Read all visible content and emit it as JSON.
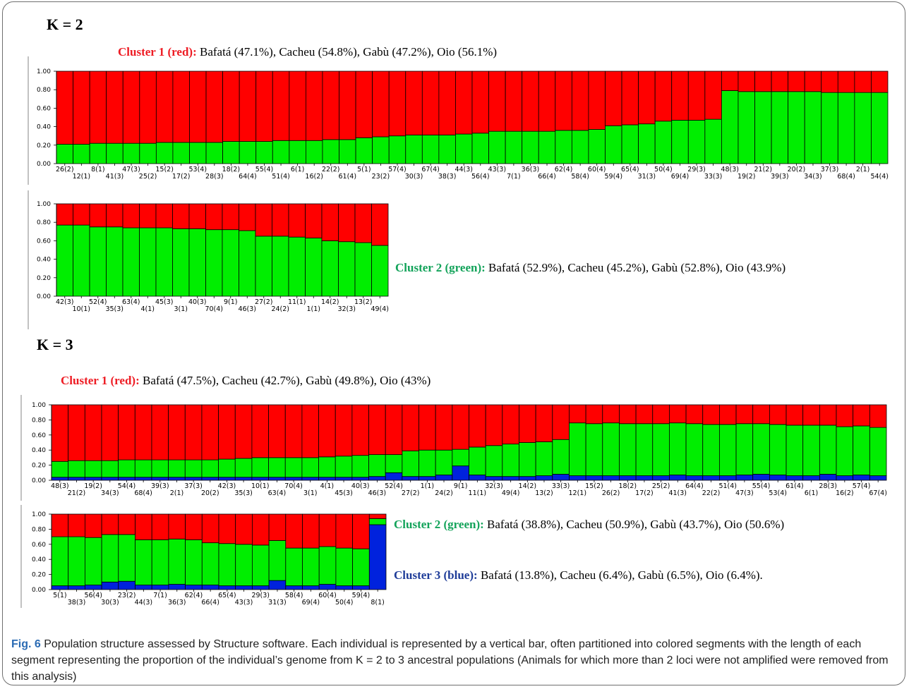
{
  "figure": {
    "k2_title": "K = 2",
    "k3_title": "K = 3",
    "k2_cluster1": {
      "label": "Cluster 1 (red):",
      "text": " Bafatá (47.1%), Cacheu (54.8%), Gabù (47.2%), Oio (56.1%)"
    },
    "k2_cluster2": {
      "label": "Cluster 2 (green):",
      "text": " Bafatá (52.9%), Cacheu (45.2%), Gabù (52.8%), Oio (43.9%)"
    },
    "k3_cluster1": {
      "label": "Cluster 1 (red):",
      "text": " Bafatá (47.5%), Cacheu (42.7%), Gabù (49.8%), Oio (43%)"
    },
    "k3_cluster2": {
      "label": "Cluster 2 (green):",
      "text": " Bafatá (38.8%), Cacheu (50.9%), Gabù (43.7%), Oio (50.6%)"
    },
    "k3_cluster3": {
      "label": "Cluster 3 (blue):",
      "text": " Bafatá (13.8%), Cacheu (6.4%), Gabù (6.5%), Oio (6.4%)."
    },
    "caption_label": "Fig. 6",
    "caption_text": " Population structure assessed by Structure software. Each individual is represented by a vertical bar, often partitioned into colored segments with the length of each segment representing the proportion of the individual’s genome from K = 2 to 3 ancestral populations (Animals for which more than 2 loci were not amplified were removed from this analysis)"
  },
  "colors": {
    "red": "#ff0000",
    "green": "#00ee00",
    "blue": "#0022dd",
    "axis": "#000000"
  },
  "chart_data": [
    {
      "type": "bar",
      "stacked": true,
      "panel": "K2-row1",
      "ylim": [
        0,
        1
      ],
      "yticks": [
        "0.00",
        "0.20",
        "0.40",
        "0.60",
        "0.80",
        "1.00"
      ],
      "categories": [
        "26(2)",
        "12(1)",
        "8(1)",
        "41(3)",
        "47(3)",
        "25(2)",
        "15(2)",
        "17(2)",
        "53(4)",
        "28(3)",
        "18(2)",
        "64(4)",
        "55(4)",
        "51(4)",
        "6(1)",
        "16(2)",
        "22(2)",
        "61(4)",
        "5(1)",
        "23(2)",
        "57(4)",
        "30(3)",
        "67(4)",
        "38(3)",
        "44(3)",
        "56(4)",
        "43(3)",
        "7(1)",
        "36(3)",
        "66(4)",
        "62(4)",
        "58(4)",
        "60(4)",
        "59(4)",
        "65(4)",
        "31(3)",
        "50(4)",
        "69(4)",
        "29(3)",
        "33(3)",
        "48(3)",
        "19(2)",
        "21(2)",
        "39(3)",
        "20(2)",
        "34(3)",
        "37(3)",
        "68(4)",
        "2(1)",
        "54(4)"
      ],
      "series": [
        {
          "name": "Cluster 2 (green)",
          "values": [
            0.21,
            0.21,
            0.22,
            0.22,
            0.22,
            0.22,
            0.23,
            0.23,
            0.23,
            0.23,
            0.24,
            0.24,
            0.24,
            0.25,
            0.25,
            0.25,
            0.26,
            0.26,
            0.28,
            0.29,
            0.3,
            0.31,
            0.31,
            0.31,
            0.32,
            0.33,
            0.35,
            0.35,
            0.35,
            0.35,
            0.36,
            0.36,
            0.37,
            0.41,
            0.42,
            0.43,
            0.46,
            0.47,
            0.47,
            0.48,
            0.79,
            0.78,
            0.78,
            0.78,
            0.78,
            0.78,
            0.77,
            0.77,
            0.77,
            0.77
          ]
        },
        {
          "name": "Cluster 1 (red)",
          "values": [
            0.79,
            0.79,
            0.78,
            0.78,
            0.78,
            0.78,
            0.77,
            0.77,
            0.77,
            0.77,
            0.76,
            0.76,
            0.76,
            0.75,
            0.75,
            0.75,
            0.74,
            0.74,
            0.72,
            0.71,
            0.7,
            0.69,
            0.69,
            0.69,
            0.68,
            0.67,
            0.65,
            0.65,
            0.65,
            0.65,
            0.64,
            0.64,
            0.63,
            0.59,
            0.58,
            0.57,
            0.54,
            0.53,
            0.53,
            0.52,
            0.21,
            0.22,
            0.22,
            0.22,
            0.22,
            0.22,
            0.23,
            0.23,
            0.23,
            0.23
          ]
        }
      ]
    },
    {
      "type": "bar",
      "stacked": true,
      "panel": "K2-row2",
      "ylim": [
        0,
        1
      ],
      "yticks": [
        "0.00",
        "0.20",
        "0.40",
        "0.60",
        "0.80",
        "1.00"
      ],
      "categories": [
        "42(3)",
        "10(1)",
        "52(4)",
        "35(3)",
        "63(4)",
        "4(1)",
        "45(3)",
        "3(1)",
        "40(3)",
        "70(4)",
        "9(1)",
        "46(3)",
        "27(2)",
        "24(2)",
        "11(1)",
        "1(1)",
        "14(2)",
        "32(3)",
        "13(2)",
        "49(4)"
      ],
      "series": [
        {
          "name": "Cluster 2 (green)",
          "values": [
            0.77,
            0.77,
            0.75,
            0.75,
            0.74,
            0.74,
            0.74,
            0.73,
            0.73,
            0.72,
            0.72,
            0.71,
            0.65,
            0.65,
            0.64,
            0.63,
            0.6,
            0.59,
            0.58,
            0.55
          ]
        },
        {
          "name": "Cluster 1 (red)",
          "values": [
            0.23,
            0.23,
            0.25,
            0.25,
            0.26,
            0.26,
            0.26,
            0.27,
            0.27,
            0.28,
            0.28,
            0.29,
            0.35,
            0.35,
            0.36,
            0.37,
            0.4,
            0.41,
            0.42,
            0.45
          ]
        }
      ]
    },
    {
      "type": "bar",
      "stacked": true,
      "panel": "K3-row1",
      "ylim": [
        0,
        1
      ],
      "yticks": [
        "0.00",
        "0.20",
        "0.40",
        "0.60",
        "0.80",
        "1.00"
      ],
      "categories": [
        "48(3)",
        "21(2)",
        "19(2)",
        "34(3)",
        "54(4)",
        "68(4)",
        "39(3)",
        "2(1)",
        "37(3)",
        "20(2)",
        "42(3)",
        "35(3)",
        "10(1)",
        "63(4)",
        "70(4)",
        "3(1)",
        "4(1)",
        "45(3)",
        "40(3)",
        "46(3)",
        "52(4)",
        "27(2)",
        "1(1)",
        "24(2)",
        "9(1)",
        "11(1)",
        "32(3)",
        "49(4)",
        "14(2)",
        "13(2)",
        "33(3)",
        "12(1)",
        "15(2)",
        "26(2)",
        "18(2)",
        "17(2)",
        "25(2)",
        "41(3)",
        "64(4)",
        "22(2)",
        "51(4)",
        "47(3)",
        "55(4)",
        "53(4)",
        "61(4)",
        "6(1)",
        "28(3)",
        "16(2)",
        "57(4)",
        "67(4)"
      ],
      "series": [
        {
          "name": "Cluster 3 (blue)",
          "values": [
            0.04,
            0.04,
            0.04,
            0.04,
            0.04,
            0.04,
            0.04,
            0.04,
            0.04,
            0.04,
            0.04,
            0.04,
            0.04,
            0.04,
            0.04,
            0.04,
            0.04,
            0.04,
            0.04,
            0.05,
            0.1,
            0.05,
            0.05,
            0.07,
            0.19,
            0.07,
            0.05,
            0.05,
            0.05,
            0.06,
            0.08,
            0.06,
            0.06,
            0.06,
            0.06,
            0.06,
            0.06,
            0.07,
            0.06,
            0.06,
            0.06,
            0.07,
            0.08,
            0.07,
            0.06,
            0.06,
            0.08,
            0.06,
            0.07,
            0.06
          ]
        },
        {
          "name": "Cluster 2 (green)",
          "values": [
            0.21,
            0.22,
            0.22,
            0.22,
            0.23,
            0.23,
            0.23,
            0.23,
            0.23,
            0.23,
            0.24,
            0.25,
            0.26,
            0.26,
            0.26,
            0.26,
            0.27,
            0.28,
            0.29,
            0.29,
            0.24,
            0.34,
            0.35,
            0.33,
            0.22,
            0.37,
            0.41,
            0.43,
            0.45,
            0.45,
            0.46,
            0.7,
            0.69,
            0.7,
            0.69,
            0.69,
            0.69,
            0.69,
            0.69,
            0.68,
            0.68,
            0.68,
            0.67,
            0.67,
            0.67,
            0.67,
            0.65,
            0.65,
            0.65,
            0.64
          ]
        },
        {
          "name": "Cluster 1 (red)",
          "values": [
            0.75,
            0.74,
            0.74,
            0.74,
            0.73,
            0.73,
            0.73,
            0.73,
            0.73,
            0.73,
            0.72,
            0.71,
            0.7,
            0.7,
            0.7,
            0.7,
            0.69,
            0.68,
            0.67,
            0.66,
            0.66,
            0.61,
            0.6,
            0.6,
            0.59,
            0.56,
            0.54,
            0.52,
            0.5,
            0.49,
            0.46,
            0.24,
            0.25,
            0.24,
            0.25,
            0.25,
            0.25,
            0.24,
            0.25,
            0.26,
            0.26,
            0.25,
            0.25,
            0.26,
            0.27,
            0.27,
            0.27,
            0.29,
            0.28,
            0.3
          ]
        }
      ]
    },
    {
      "type": "bar",
      "stacked": true,
      "panel": "K3-row2",
      "ylim": [
        0,
        1
      ],
      "yticks": [
        "0.00",
        "0.20",
        "0.40",
        "0.60",
        "0.80",
        "1.00"
      ],
      "categories": [
        "5(1)",
        "38(3)",
        "56(4)",
        "30(3)",
        "23(2)",
        "44(3)",
        "7(1)",
        "36(3)",
        "62(4)",
        "66(4)",
        "65(4)",
        "43(3)",
        "29(3)",
        "31(3)",
        "58(4)",
        "69(4)",
        "60(4)",
        "50(4)",
        "59(4)",
        "8(1)"
      ],
      "series": [
        {
          "name": "Cluster 3 (blue)",
          "values": [
            0.05,
            0.05,
            0.06,
            0.1,
            0.11,
            0.06,
            0.06,
            0.07,
            0.06,
            0.06,
            0.05,
            0.05,
            0.05,
            0.12,
            0.05,
            0.05,
            0.07,
            0.05,
            0.05,
            0.86
          ]
        },
        {
          "name": "Cluster 2 (green)",
          "values": [
            0.65,
            0.65,
            0.63,
            0.63,
            0.62,
            0.6,
            0.6,
            0.6,
            0.6,
            0.56,
            0.56,
            0.55,
            0.54,
            0.53,
            0.5,
            0.5,
            0.5,
            0.5,
            0.49,
            0.08
          ]
        },
        {
          "name": "Cluster 1 (red)",
          "values": [
            0.3,
            0.3,
            0.31,
            0.27,
            0.27,
            0.34,
            0.34,
            0.33,
            0.34,
            0.38,
            0.39,
            0.4,
            0.41,
            0.35,
            0.45,
            0.45,
            0.43,
            0.45,
            0.46,
            0.06
          ]
        }
      ]
    }
  ]
}
